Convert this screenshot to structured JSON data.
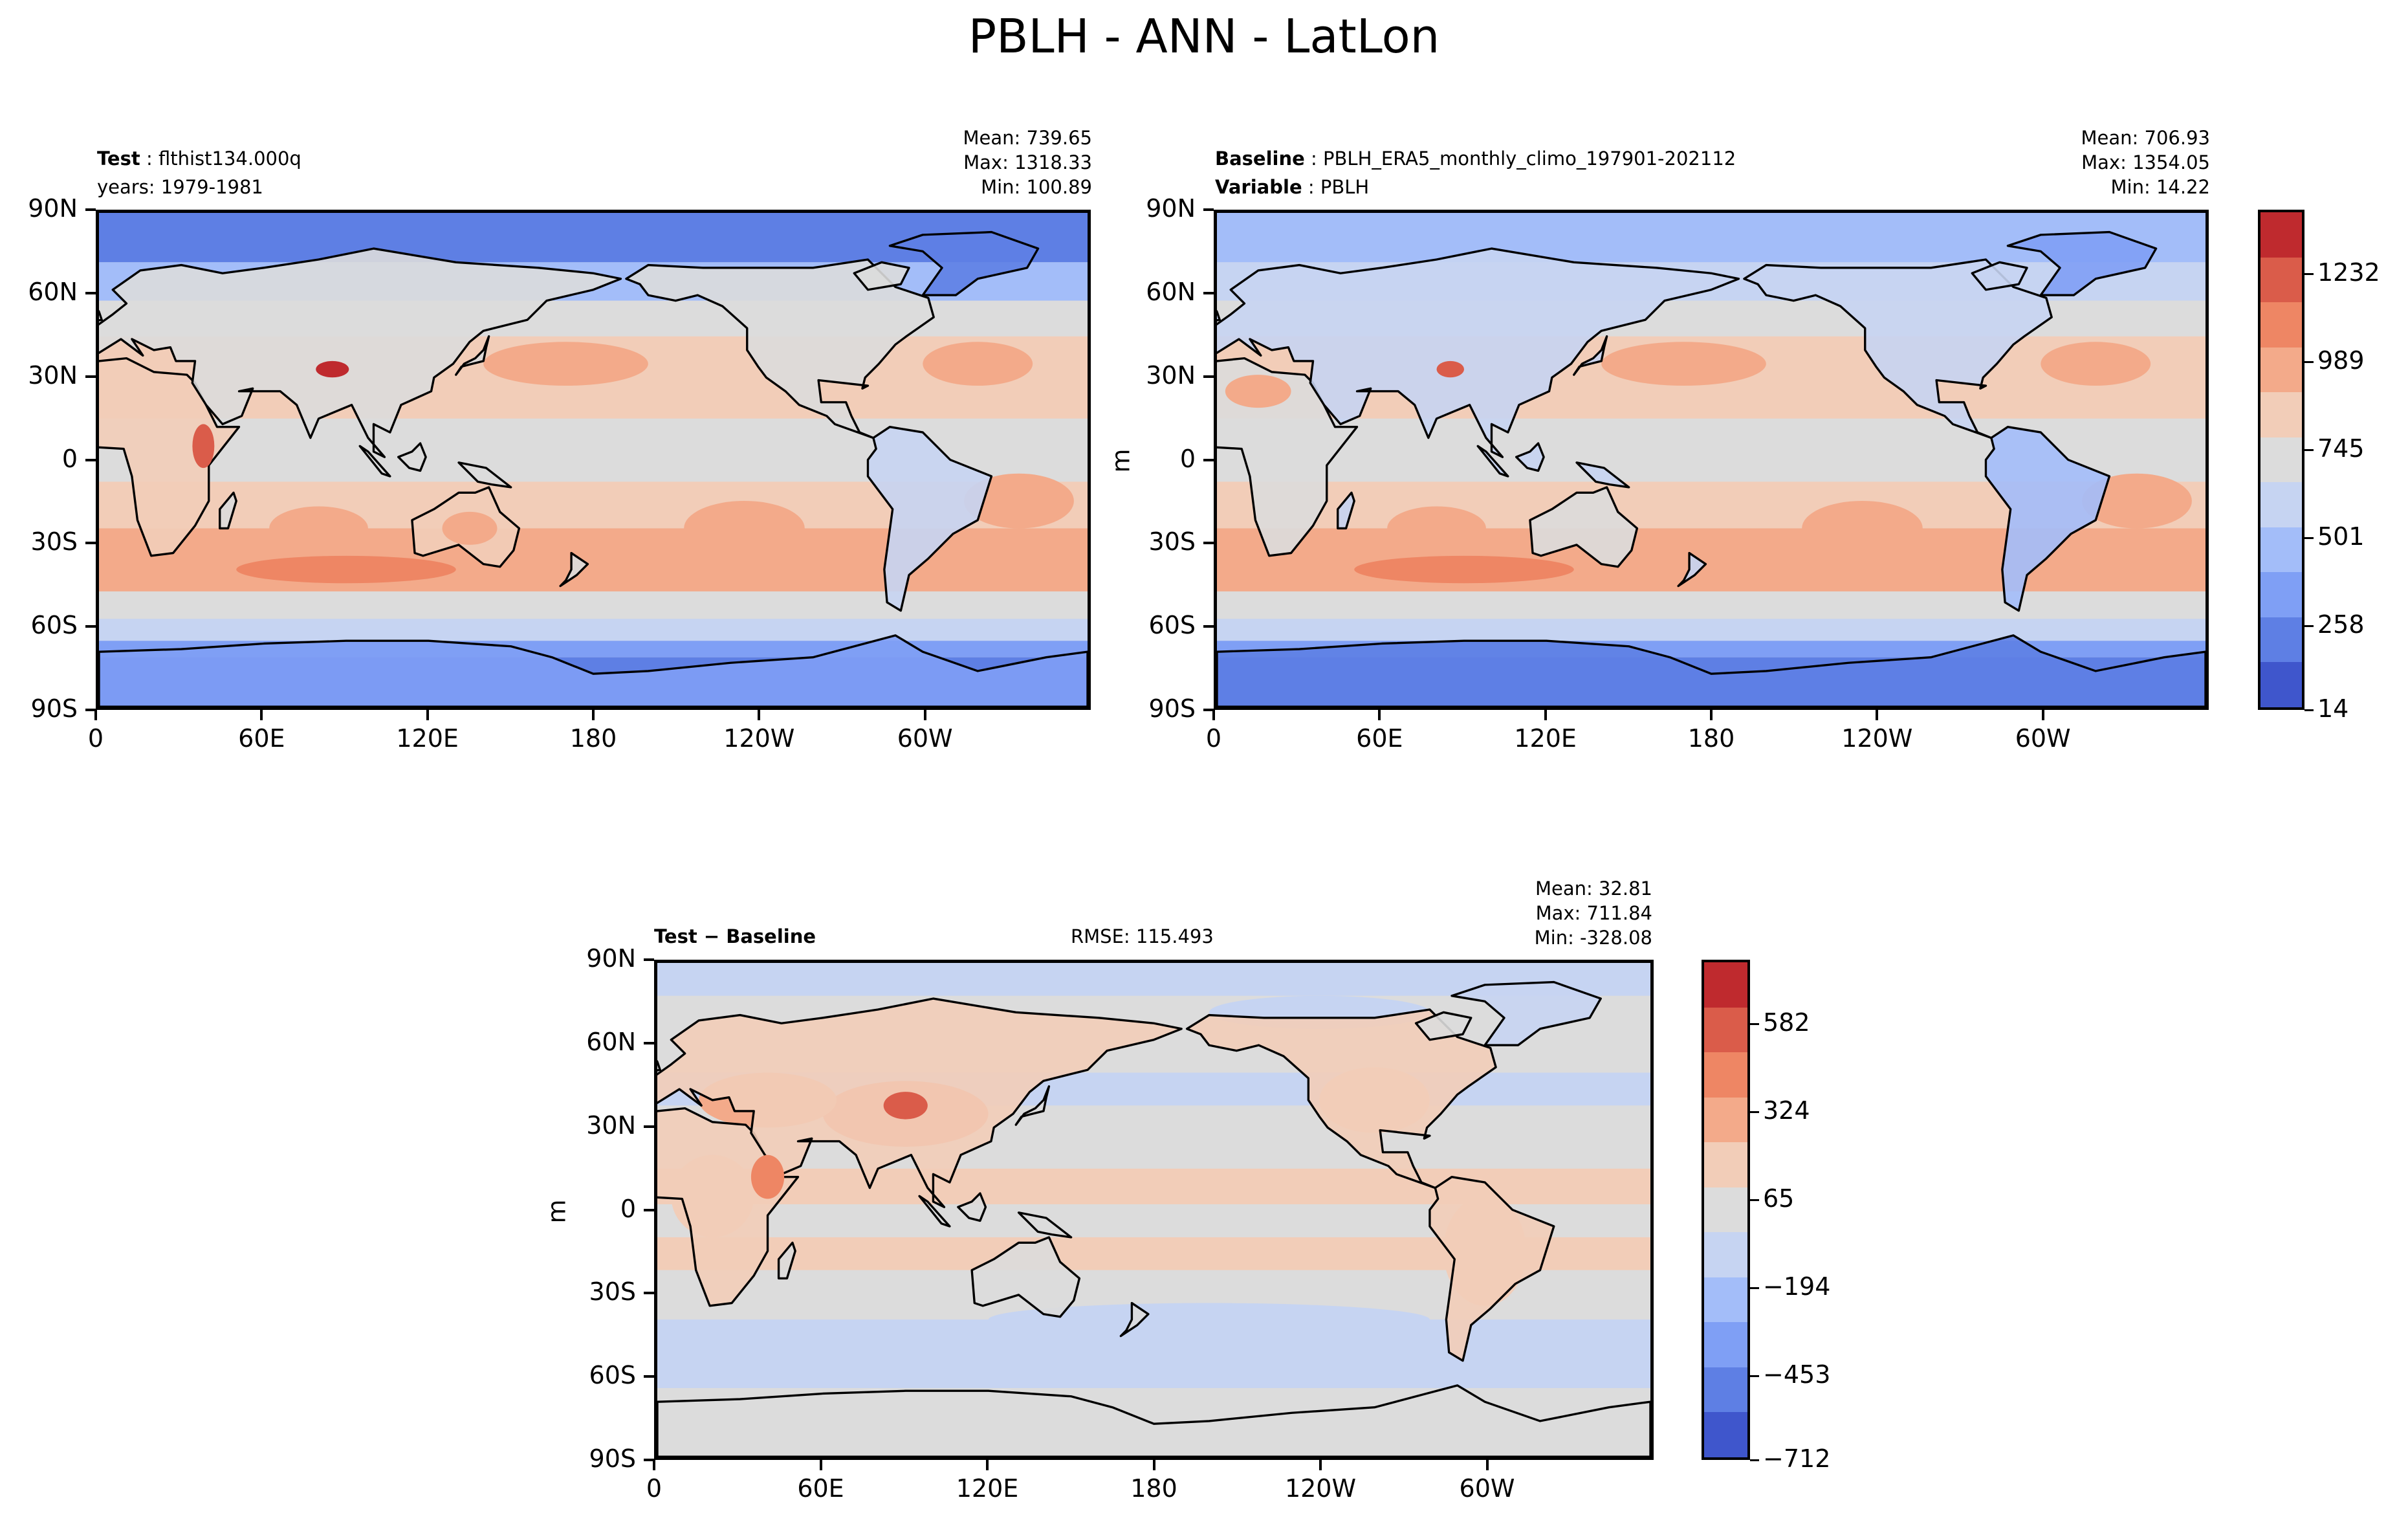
{
  "figure": {
    "title": "PBLH - ANN - LatLon"
  },
  "colors": {
    "palette": [
      "#3f56cc",
      "#5e7fe4",
      "#7f9ff5",
      "#a3bdf9",
      "#c6d4f2",
      "#dcdcdc",
      "#f2cdb8",
      "#f3aa8a",
      "#ee8664",
      "#da5c4a",
      "#bf2a2e"
    ],
    "coastline": "#000000",
    "frame": "#000000"
  },
  "axes": {
    "lat_labels": [
      "90N",
      "60N",
      "30N",
      "0",
      "30S",
      "60S",
      "90S"
    ],
    "lon_labels": [
      "0",
      "60E",
      "120E",
      "180",
      "120W",
      "60W"
    ]
  },
  "panels": {
    "test": {
      "label_bold": "Test",
      "label_text": "flthist134.000q",
      "line2": "years: 1979-1981",
      "stats": {
        "mean": "Mean: 739.65",
        "max": "Max: 1318.33",
        "min": "Min: 100.89"
      }
    },
    "baseline": {
      "label_bold": "Baseline",
      "label_text": "PBLH_ERA5_monthly_climo_197901-202112",
      "line2_bold": "Variable",
      "line2_text": "PBLH",
      "stats": {
        "mean": "Mean: 706.93",
        "max": "Max: 1354.05",
        "min": "Min: 14.22"
      },
      "unit": "m",
      "colorbar_ticks": [
        "1232",
        "989",
        "745",
        "501",
        "258",
        "14"
      ]
    },
    "diff": {
      "label_bold": "Test − Baseline",
      "rmse": "RMSE: 115.493",
      "stats": {
        "mean": "Mean: 32.81",
        "max": "Max: 711.84",
        "min": "Min: -328.08"
      },
      "unit": "m",
      "colorbar_ticks": [
        "582",
        "324",
        "65",
        "−194",
        "−453",
        "−712"
      ]
    }
  },
  "chart_data": [
    {
      "type": "heatmap",
      "title": "Test: flthist134.000q (years: 1979-1981)",
      "variable": "PBLH",
      "units": "m",
      "x_range": [
        0,
        360
      ],
      "y_range": [
        -90,
        90
      ],
      "xticks": [
        "0",
        "60E",
        "120E",
        "180",
        "120W",
        "60W"
      ],
      "yticks": [
        "90N",
        "60N",
        "30N",
        "0",
        "30S",
        "60S",
        "90S"
      ],
      "levels": [
        14,
        136,
        258,
        380,
        501,
        623,
        745,
        867,
        989,
        1110,
        1232,
        1354
      ],
      "mean": 739.65,
      "max": 1318.33,
      "min": 100.89
    },
    {
      "type": "heatmap",
      "title": "Baseline: PBLH_ERA5_monthly_climo_197901-202112",
      "variable": "PBLH",
      "units": "m",
      "x_range": [
        0,
        360
      ],
      "y_range": [
        -90,
        90
      ],
      "xticks": [
        "0",
        "60E",
        "120E",
        "180",
        "120W",
        "60W"
      ],
      "yticks": [
        "90N",
        "60N",
        "30N",
        "0",
        "30S",
        "60S",
        "90S"
      ],
      "colorbar_ticks": [
        14,
        258,
        501,
        745,
        989,
        1232
      ],
      "mean": 706.93,
      "max": 1354.05,
      "min": 14.22
    },
    {
      "type": "heatmap",
      "title": "Test − Baseline",
      "variable": "PBLH difference",
      "units": "m",
      "x_range": [
        0,
        360
      ],
      "y_range": [
        -90,
        90
      ],
      "xticks": [
        "0",
        "60E",
        "120E",
        "180",
        "120W",
        "60W"
      ],
      "yticks": [
        "90N",
        "60N",
        "30N",
        "0",
        "30S",
        "60S",
        "90S"
      ],
      "colorbar_ticks": [
        -712,
        -453,
        -194,
        65,
        324,
        582
      ],
      "rmse": 115.493,
      "mean": 32.81,
      "max": 711.84,
      "min": -328.08
    }
  ]
}
